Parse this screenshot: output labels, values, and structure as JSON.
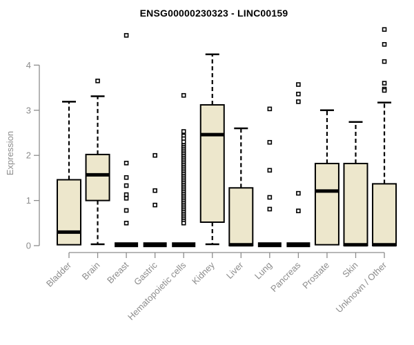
{
  "title": "ENSG00000230323 - LINC00159",
  "chart_data": {
    "type": "boxplot",
    "title": "ENSG00000230323 - LINC00159",
    "xlabel": "",
    "ylabel": "Expression",
    "ylim": [
      0,
      4.85
    ],
    "yticks": [
      0,
      1,
      2,
      3,
      4
    ],
    "grid": false,
    "legend": false,
    "colors": {
      "box_fill": "#ede7cc",
      "box_stroke": "#000000",
      "median": "#000000",
      "whisker": "#000000",
      "outlier_stroke": "#000000",
      "outlier_fill": "#ffffff",
      "axis": "#8c8c8c",
      "tick_label": "#8c8c8c",
      "title_color": "#000000"
    },
    "categories": [
      "Bladder",
      "Brain",
      "Breast",
      "Gastric",
      "Hematopoietic cells",
      "Kidney",
      "Liver",
      "Lung",
      "Pancreas",
      "Prostate",
      "Skin",
      "Unknown / Other"
    ],
    "boxes": [
      {
        "category": "Bladder",
        "whisker_low": 0.0,
        "q1": 0.02,
        "median": 0.3,
        "q3": 1.46,
        "whisker_high": 3.19,
        "outliers": []
      },
      {
        "category": "Brain",
        "whisker_low": 0.03,
        "q1": 1.0,
        "median": 1.57,
        "q3": 2.02,
        "whisker_high": 3.31,
        "outliers": [
          3.65
        ]
      },
      {
        "category": "Breast",
        "whisker_low": 0.0,
        "q1": 0.0,
        "median": 0.02,
        "q3": 0.04,
        "whisker_high": 0.04,
        "outliers": [
          4.66,
          1.83,
          1.51,
          1.33,
          1.13,
          1.05,
          0.78,
          0.5
        ]
      },
      {
        "category": "Gastric",
        "whisker_low": 0.0,
        "q1": 0.0,
        "median": 0.02,
        "q3": 0.04,
        "whisker_high": 0.04,
        "outliers": [
          2.0,
          1.22,
          0.9
        ]
      },
      {
        "category": "Hematopoietic cells",
        "whisker_low": 0.0,
        "q1": 0.0,
        "median": 0.02,
        "q3": 0.04,
        "whisker_high": 0.04,
        "outliers": [
          3.33,
          2.53,
          2.43,
          2.37,
          2.3,
          2.22,
          2.18,
          2.14,
          2.1,
          2.06,
          2.02,
          1.98,
          1.94,
          1.9,
          1.86,
          1.82,
          1.78,
          1.74,
          1.7,
          1.66,
          1.62,
          1.58,
          1.54,
          1.5,
          1.46,
          1.42,
          1.38,
          1.34,
          1.3,
          1.26,
          1.22,
          1.18,
          1.14,
          1.1,
          1.06,
          1.02,
          0.98,
          0.94,
          0.9,
          0.86,
          0.82,
          0.78,
          0.74,
          0.7,
          0.66,
          0.62,
          0.58,
          0.54,
          0.5
        ]
      },
      {
        "category": "Kidney",
        "whisker_low": 0.03,
        "q1": 0.52,
        "median": 2.46,
        "q3": 3.12,
        "whisker_high": 4.24,
        "outliers": []
      },
      {
        "category": "Liver",
        "whisker_low": 0.0,
        "q1": 0.0,
        "median": 0.02,
        "q3": 1.28,
        "whisker_high": 2.6,
        "outliers": []
      },
      {
        "category": "Lung",
        "whisker_low": 0.0,
        "q1": 0.0,
        "median": 0.02,
        "q3": 0.04,
        "whisker_high": 0.04,
        "outliers": [
          3.03,
          2.29,
          1.67,
          1.07,
          0.81
        ]
      },
      {
        "category": "Pancreas",
        "whisker_low": 0.0,
        "q1": 0.0,
        "median": 0.02,
        "q3": 0.04,
        "whisker_high": 0.04,
        "outliers": [
          3.57,
          3.36,
          3.19,
          1.16,
          0.77
        ]
      },
      {
        "category": "Prostate",
        "whisker_low": 0.0,
        "q1": 0.02,
        "median": 1.21,
        "q3": 1.82,
        "whisker_high": 3.0,
        "outliers": []
      },
      {
        "category": "Skin",
        "whisker_low": 0.0,
        "q1": 0.0,
        "median": 0.02,
        "q3": 1.82,
        "whisker_high": 2.74,
        "outliers": []
      },
      {
        "category": "Unknown / Other",
        "whisker_low": 0.0,
        "q1": 0.0,
        "median": 0.02,
        "q3": 1.37,
        "whisker_high": 3.17,
        "outliers": [
          4.79,
          4.46,
          4.08,
          3.6,
          3.47,
          3.44
        ]
      }
    ]
  }
}
